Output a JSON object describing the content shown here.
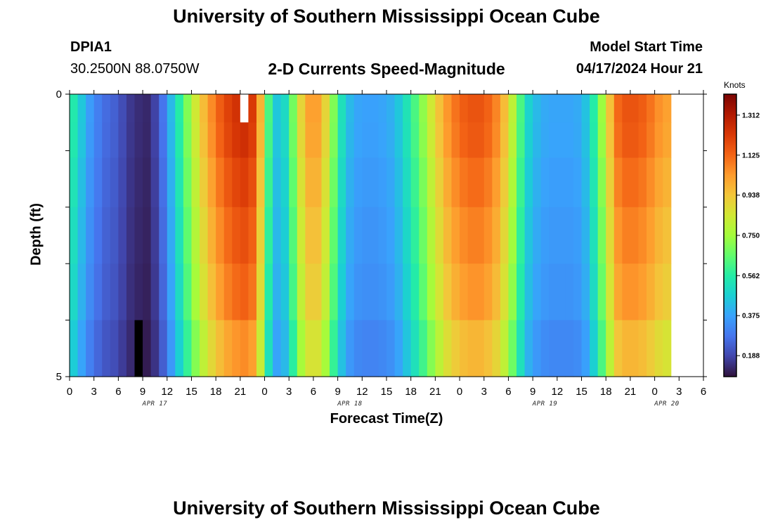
{
  "header": {
    "title": "University of Southern Mississippi Ocean Cube",
    "station_id": "DPIA1",
    "station_coords": "30.2500N  88.0750W",
    "chart_title": "2-D Currents Speed-Magnitude",
    "model_start_label": "Model Start Time",
    "model_start_value": "04/17/2024 Hour 21"
  },
  "footer": {
    "title": "University of Southern Mississippi Ocean Cube"
  },
  "chart_data": {
    "type": "heatmap",
    "title": "2-D Currents Speed-Magnitude",
    "xlabel": "Forecast Time(Z)",
    "ylabel": "Depth (ft)",
    "xlim": [
      0,
      78
    ],
    "ylim": [
      5,
      0
    ],
    "x_ticks": [
      0,
      3,
      6,
      9,
      12,
      15,
      18,
      21,
      24,
      27,
      30,
      33,
      36,
      39,
      42,
      45,
      48,
      51,
      54,
      57,
      60,
      63,
      66,
      69,
      72,
      75,
      78
    ],
    "x_tick_labels": [
      "0",
      "3",
      "6",
      "9",
      "12",
      "15",
      "18",
      "21",
      "0",
      "3",
      "6",
      "9",
      "12",
      "15",
      "18",
      "21",
      "0",
      "3",
      "6",
      "9",
      "12",
      "15",
      "18",
      "21",
      "0",
      "3",
      "6"
    ],
    "date_labels": [
      {
        "hour": 10.5,
        "text": "APR 17"
      },
      {
        "hour": 34.5,
        "text": "APR 18"
      },
      {
        "hour": 58.5,
        "text": "APR 19"
      },
      {
        "hour": 73.5,
        "text": "APR 20"
      }
    ],
    "y_ticks": [
      0,
      1,
      2,
      3,
      4,
      5
    ],
    "y_tick_labels": [
      "0",
      "",
      "",
      "",
      "",
      "5"
    ],
    "colorbar": {
      "label": "Knots",
      "min": 0.09,
      "max": 1.41,
      "ticks": [
        0.188,
        0.375,
        0.562,
        0.75,
        0.938,
        1.125,
        1.312
      ],
      "tick_labels": [
        "0.188",
        "0.375",
        "0.562",
        "0.750",
        "0.938",
        "1.125",
        "1.312"
      ],
      "colors": [
        "#30123b",
        "#4145ab",
        "#4675ed",
        "#39a2fc",
        "#1bcfd4",
        "#24eca6",
        "#61fc6c",
        "#a4fc3b",
        "#d1e834",
        "#f3c63a",
        "#fe9b2d",
        "#f36315",
        "#d93806",
        "#b11901",
        "#7a0403"
      ]
    },
    "depth_levels": [
      0.25,
      0.75,
      1.5,
      2.5,
      3.5,
      4.5
    ],
    "hour_step": 1,
    "speed_profile_by_hour": [
      0.55,
      0.45,
      0.36,
      0.3,
      0.26,
      0.24,
      0.2,
      0.16,
      0.14,
      0.13,
      0.18,
      0.28,
      0.42,
      0.56,
      0.7,
      0.84,
      0.96,
      1.06,
      1.14,
      1.2,
      1.24,
      1.26,
      1.22,
      0.98,
      0.62,
      0.45,
      0.5,
      0.68,
      0.9,
      1.02,
      1.02,
      0.9,
      0.7,
      0.52,
      0.42,
      0.38,
      0.37,
      0.37,
      0.38,
      0.4,
      0.45,
      0.53,
      0.62,
      0.72,
      0.84,
      0.95,
      1.04,
      1.1,
      1.14,
      1.16,
      1.16,
      1.13,
      1.07,
      0.96,
      0.8,
      0.62,
      0.48,
      0.42,
      0.39,
      0.38,
      0.38,
      0.38,
      0.39,
      0.44,
      0.56,
      0.74,
      0.95,
      1.12,
      1.16,
      1.16,
      1.14,
      1.1,
      1.05,
      1.02
    ],
    "depth_factor": [
      1.0,
      0.99,
      0.96,
      0.93,
      0.9,
      0.84
    ],
    "missing_cells": [
      {
        "hour": 21.5,
        "depth_level": 0
      },
      {
        "hour": 8.5,
        "depth_level": 5
      }
    ]
  }
}
